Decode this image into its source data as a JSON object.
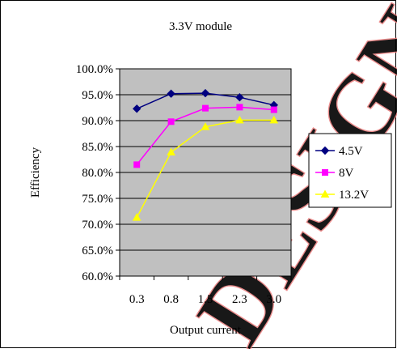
{
  "chart_data": {
    "type": "line",
    "title": "3.3V module",
    "xlabel": "Output current",
    "ylabel": "Efficiency",
    "categories": [
      "0.3",
      "0.8",
      "1.5",
      "2.3",
      "3.0"
    ],
    "y_ticks": [
      "60.0%",
      "65.0%",
      "70.0%",
      "75.0%",
      "80.0%",
      "85.0%",
      "90.0%",
      "95.0%",
      "100.0%"
    ],
    "ylim": [
      60,
      100
    ],
    "grid": true,
    "legend_position": "right",
    "plot_background": "#c0c0c0",
    "series": [
      {
        "name": "4.5V",
        "color": "#000080",
        "marker": "diamond",
        "values": [
          92.3,
          95.2,
          95.3,
          94.5,
          93.0
        ]
      },
      {
        "name": "8V",
        "color": "#ff00ff",
        "marker": "square",
        "values": [
          81.5,
          89.8,
          92.4,
          92.6,
          92.1
        ]
      },
      {
        "name": "13.2V",
        "color": "#ffff00",
        "marker": "triangle",
        "values": [
          71.3,
          83.9,
          88.8,
          90.1,
          90.1
        ]
      }
    ]
  }
}
